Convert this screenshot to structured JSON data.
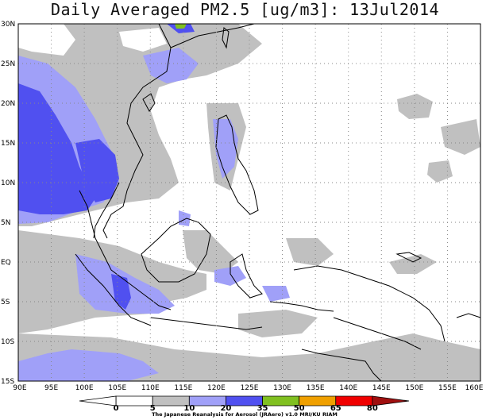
{
  "title": "Daily Averaged PM2.5 [ug/m3]: 13Jul2014",
  "map": {
    "lon_labels": [
      "90E",
      "95E",
      "100E",
      "105E",
      "110E",
      "115E",
      "120E",
      "125E",
      "130E",
      "135E",
      "140E",
      "145E",
      "150E",
      "155E",
      "160E"
    ],
    "lat_labels": [
      "30N",
      "25N",
      "20N",
      "15N",
      "10N",
      "5N",
      "EQ",
      "5S",
      "10S",
      "15S"
    ],
    "lon_range": [
      90,
      160
    ],
    "lat_range": [
      -15,
      30
    ],
    "gridlines": "dotted"
  },
  "colorbar": {
    "levels": [
      "0",
      "5",
      "10",
      "20",
      "35",
      "50",
      "65",
      "80"
    ],
    "colors": [
      "#ffffff",
      "#ffffff",
      "#c0c0c0",
      "#a0a0f8",
      "#5050f0",
      "#80c020",
      "#f0a000",
      "#f00000",
      "#a01010"
    ],
    "credit": "The Japanese Reanalysis for Aerosol (JRAero) v1.0 MRI/KU RIAM"
  }
}
